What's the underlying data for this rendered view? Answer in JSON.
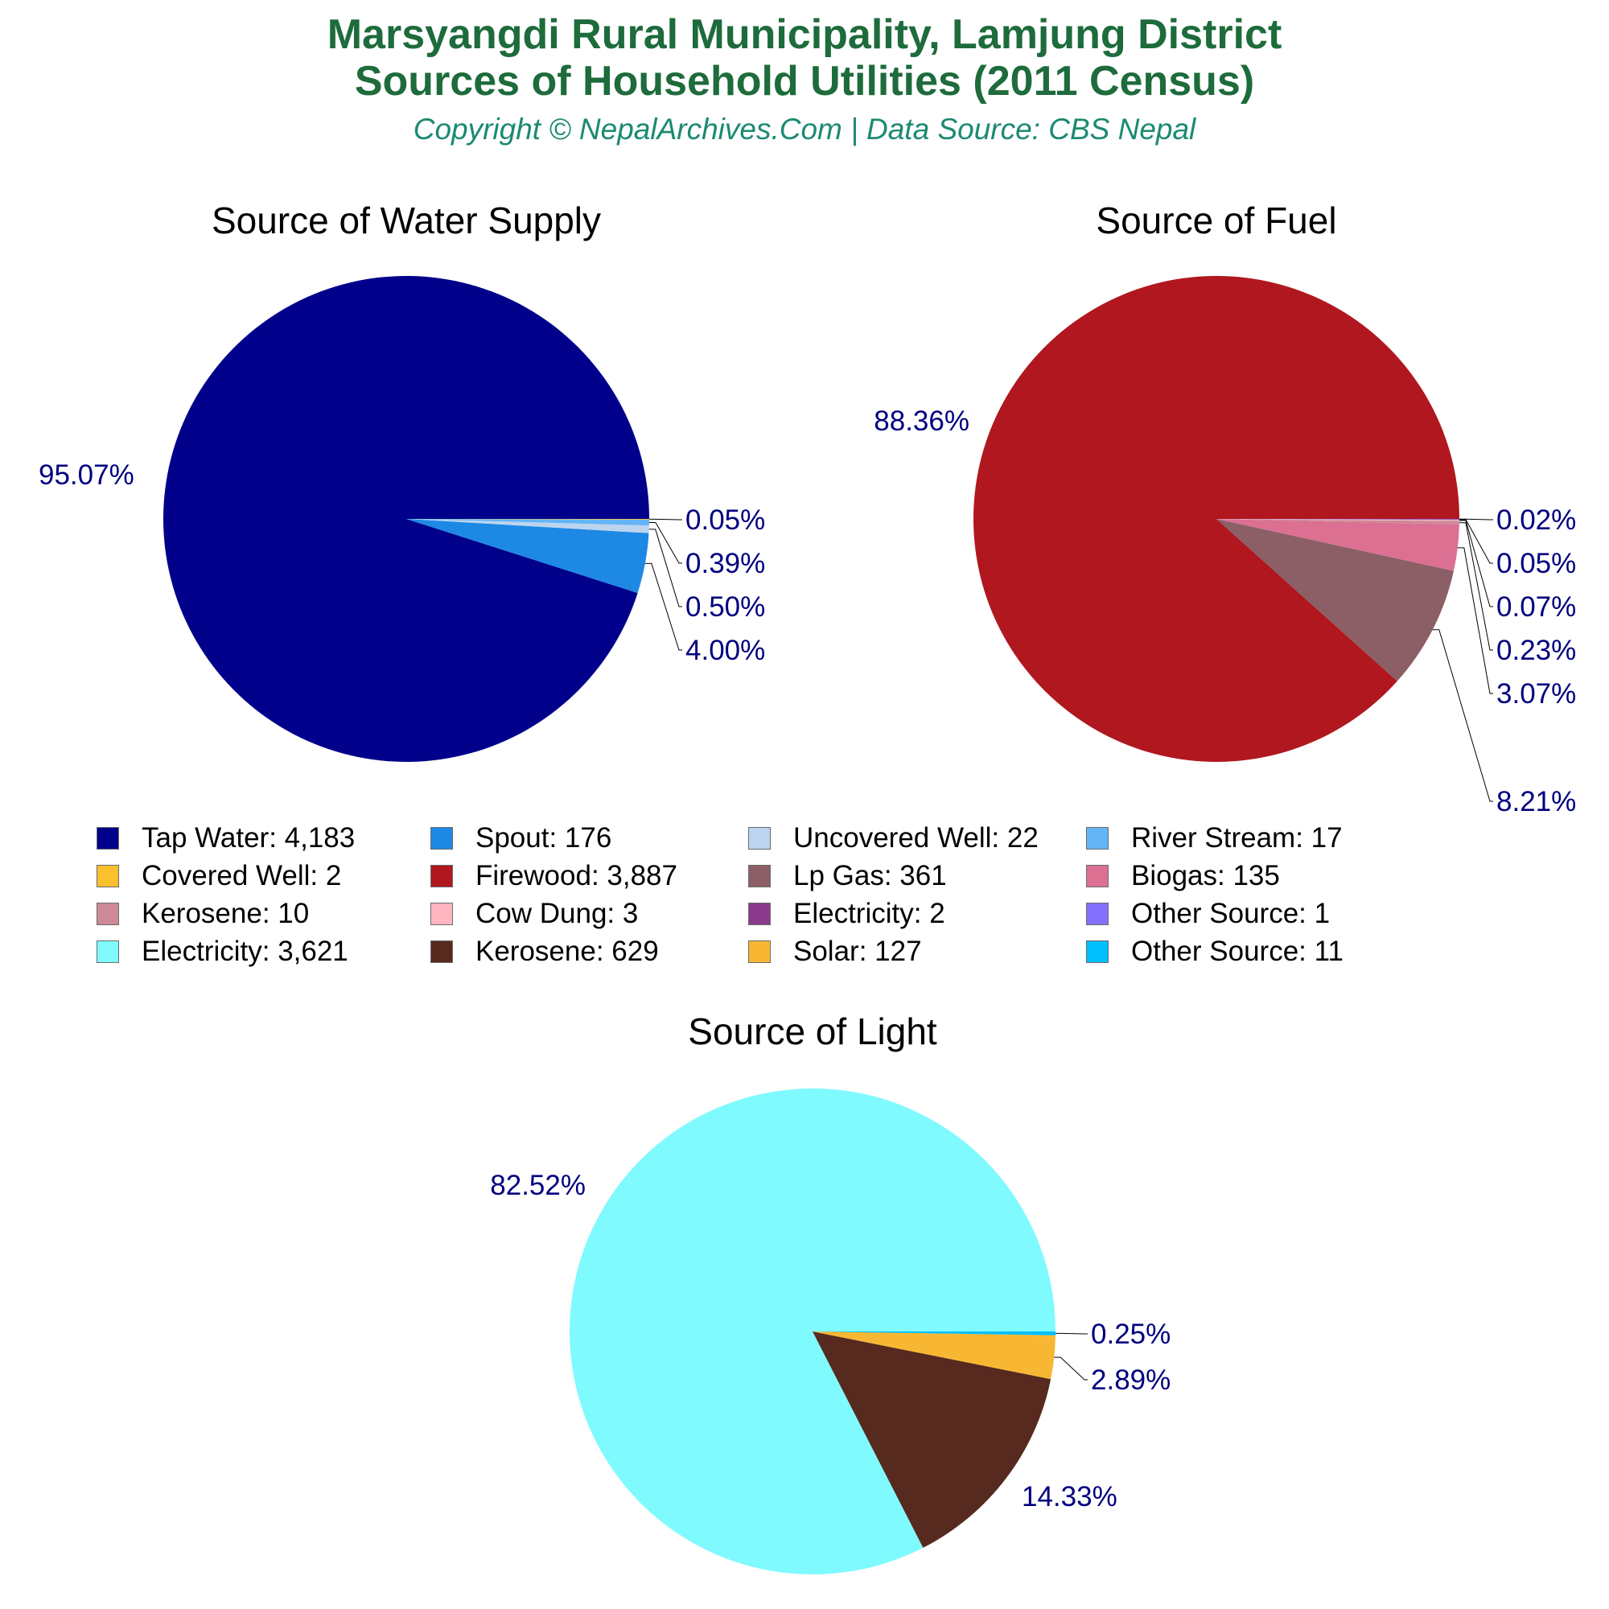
{
  "header": {
    "title_line1": "Marsyangdi Rural Municipality, Lamjung District",
    "title_line2": "Sources of Household Utilities (2011 Census)",
    "subtitle": "Copyright © NepalArchives.Com | Data Source: CBS Nepal"
  },
  "label_color": "#000080",
  "chart_data": [
    {
      "type": "pie",
      "title": "Source of Water Supply",
      "slices": [
        {
          "label": "Tap Water",
          "value": 4183,
          "percent": "95.07%",
          "color": "#00008b"
        },
        {
          "label": "Spout",
          "value": 176,
          "percent": "4.00%",
          "color": "#1e88e5"
        },
        {
          "label": "Uncovered Well",
          "value": 22,
          "percent": "0.50%",
          "color": "#bcd4ee"
        },
        {
          "label": "River Stream",
          "value": 17,
          "percent": "0.39%",
          "color": "#64b5f6"
        },
        {
          "label": "Covered Well",
          "value": 2,
          "percent": "0.05%",
          "color": "#fbc02d"
        }
      ]
    },
    {
      "type": "pie",
      "title": "Source of Fuel",
      "slices": [
        {
          "label": "Firewood",
          "value": 3887,
          "percent": "88.36%",
          "color": "#b0171f"
        },
        {
          "label": "Lp Gas",
          "value": 361,
          "percent": "8.21%",
          "color": "#8b5f65"
        },
        {
          "label": "Biogas",
          "value": 135,
          "percent": "3.07%",
          "color": "#db7093"
        },
        {
          "label": "Kerosene",
          "value": 10,
          "percent": "0.23%",
          "color": "#cd8a96"
        },
        {
          "label": "Cow Dung",
          "value": 3,
          "percent": "0.07%",
          "color": "#ffb6c1"
        },
        {
          "label": "Electricity",
          "value": 2,
          "percent": "0.05%",
          "color": "#8b3a8b"
        },
        {
          "label": "Other Source",
          "value": 1,
          "percent": "0.02%",
          "color": "#8470ff"
        }
      ]
    },
    {
      "type": "pie",
      "title": "Source of Light",
      "slices": [
        {
          "label": "Electricity",
          "value": 3621,
          "percent": "82.52%",
          "color": "#7ffaff"
        },
        {
          "label": "Kerosene",
          "value": 629,
          "percent": "14.33%",
          "color": "#562a1f"
        },
        {
          "label": "Solar",
          "value": 127,
          "percent": "2.89%",
          "color": "#f7b733"
        },
        {
          "label": "Other Source",
          "value": 11,
          "percent": "0.25%",
          "color": "#00bfff"
        }
      ]
    }
  ],
  "legend": {
    "columns": 4,
    "items": [
      {
        "text": "Tap Water: 4,183",
        "color": "#00008b"
      },
      {
        "text": "Spout: 176",
        "color": "#1e88e5"
      },
      {
        "text": "Uncovered Well: 22",
        "color": "#bcd4ee"
      },
      {
        "text": "River Stream: 17",
        "color": "#64b5f6"
      },
      {
        "text": "Covered Well: 2",
        "color": "#fbc02d"
      },
      {
        "text": "Firewood: 3,887",
        "color": "#b0171f"
      },
      {
        "text": "Lp Gas: 361",
        "color": "#8b5f65"
      },
      {
        "text": "Biogas: 135",
        "color": "#db7093"
      },
      {
        "text": "Kerosene: 10",
        "color": "#cd8a96"
      },
      {
        "text": "Cow Dung: 3",
        "color": "#ffb6c1"
      },
      {
        "text": "Electricity: 2",
        "color": "#8b3a8b"
      },
      {
        "text": "Other Source: 1",
        "color": "#8470ff"
      },
      {
        "text": "Electricity: 3,621",
        "color": "#7ffaff"
      },
      {
        "text": "Kerosene: 629",
        "color": "#562a1f"
      },
      {
        "text": "Solar: 127",
        "color": "#f7b733"
      },
      {
        "text": "Other Source: 11",
        "color": "#00bfff"
      }
    ]
  }
}
